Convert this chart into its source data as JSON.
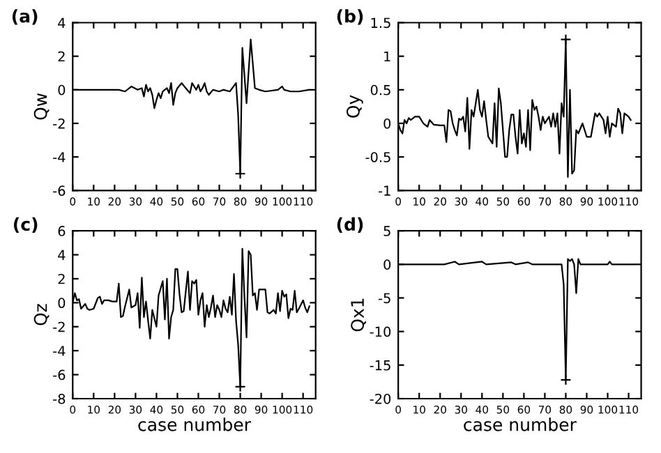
{
  "chart_data": [
    {
      "type": "line",
      "title": "(a)",
      "ylabel": "Qw",
      "xlim": [
        0,
        116
      ],
      "xticks": [
        0,
        10,
        20,
        30,
        40,
        50,
        60,
        70,
        80,
        90,
        100,
        110
      ],
      "ylim": [
        -6,
        4
      ],
      "yticks": [
        -6,
        -4,
        -2,
        0,
        2,
        4
      ],
      "grid": false,
      "series": [
        {
          "color": "#000000",
          "x": [
            0,
            22,
            25,
            28,
            31,
            33,
            34,
            35,
            36,
            37,
            38,
            39,
            40,
            41,
            42,
            43,
            45,
            46,
            47,
            48,
            49,
            50,
            52,
            54,
            56,
            57,
            58,
            59,
            60,
            61,
            62,
            63,
            64,
            65,
            67,
            70,
            72,
            75,
            78,
            79,
            80,
            81,
            83,
            85,
            87,
            89,
            92,
            98,
            100,
            101,
            104,
            108,
            113
          ],
          "values": [
            0,
            0,
            -0.1,
            0.2,
            0,
            0.1,
            -0.4,
            0.3,
            -0.1,
            0.1,
            -0.3,
            -1.1,
            -0.6,
            -0.2,
            -0.5,
            -0.1,
            0.1,
            -0.2,
            0.4,
            -0.9,
            -0.2,
            0.1,
            0.4,
            0.1,
            -0.2,
            0.4,
            0.2,
            0,
            0.3,
            -0.1,
            0.1,
            0.4,
            -0.1,
            -0.3,
            0,
            -0.1,
            0,
            -0.1,
            0.4,
            -1.5,
            -5,
            2.5,
            -0.8,
            3,
            0.1,
            0,
            -0.1,
            0,
            0.2,
            0,
            -0.1,
            -0.1,
            0
          ]
        },
        {
          "type": "scatter",
          "color": "#000000",
          "marker": "cross",
          "x": [
            80
          ],
          "values": [
            -5
          ]
        }
      ]
    },
    {
      "type": "line",
      "title": "(b)",
      "ylabel": "Qy",
      "xlim": [
        0,
        116
      ],
      "xticks": [
        0,
        10,
        20,
        30,
        40,
        50,
        60,
        70,
        80,
        90,
        100,
        110
      ],
      "ylim": [
        -1,
        1.5
      ],
      "yticks": [
        -1,
        -0.5,
        0,
        0.5,
        1,
        1.5
      ],
      "grid": false,
      "series": [
        {
          "color": "#000000",
          "x": [
            0,
            1,
            2,
            3,
            4,
            5,
            6,
            8,
            10,
            12,
            14,
            15,
            17,
            20,
            22,
            23,
            24,
            25,
            26,
            27,
            28,
            29,
            30,
            31,
            32,
            33,
            34,
            35,
            36,
            37,
            38,
            39,
            40,
            41,
            42,
            43,
            44,
            45,
            46,
            47,
            48,
            49,
            50,
            51,
            52,
            53,
            54,
            55,
            56,
            57,
            58,
            59,
            60,
            61,
            62,
            63,
            64,
            65,
            66,
            67,
            68,
            69,
            70,
            72,
            73,
            74,
            75,
            76,
            77,
            78,
            79,
            80,
            81,
            82,
            83,
            84,
            85,
            86,
            88,
            90,
            91,
            92,
            94,
            95,
            96,
            98,
            99,
            100,
            101,
            102,
            104,
            105,
            106,
            107,
            108,
            110,
            111
          ],
          "values": [
            0,
            -0.1,
            -0.15,
            0.05,
            0,
            0.08,
            0.05,
            0.1,
            0.1,
            0,
            -0.05,
            0.05,
            -0.02,
            -0.03,
            -0.03,
            -0.28,
            0.2,
            0.18,
            0,
            -0.1,
            -0.18,
            0.07,
            0.05,
            0.1,
            -0.12,
            0.38,
            -0.38,
            0.2,
            0.1,
            0.3,
            0.5,
            0.2,
            0.1,
            0.33,
            0.05,
            -0.2,
            -0.25,
            -0.3,
            0.3,
            -0.35,
            0.52,
            0.3,
            -0.1,
            -0.5,
            -0.5,
            -0.1,
            0.13,
            0.13,
            -0.2,
            -0.45,
            0.2,
            -0.3,
            -0.15,
            -0.35,
            0.2,
            -0.4,
            0.35,
            0.2,
            0.25,
            0.1,
            -0.1,
            0.1,
            0,
            0.1,
            -0.05,
            0.15,
            -0.05,
            0.15,
            -0.45,
            0.3,
            0.1,
            1.25,
            -0.8,
            0.5,
            -0.75,
            -0.7,
            -0.1,
            -0.15,
            0,
            -0.2,
            -0.2,
            -0.2,
            0.15,
            0.1,
            0.15,
            0.05,
            -0.15,
            0.1,
            -0.2,
            0,
            -0.05,
            0.22,
            0.15,
            -0.15,
            0.15,
            0.1,
            0.05
          ]
        },
        {
          "type": "scatter",
          "color": "#000000",
          "marker": "cross",
          "x": [
            80
          ],
          "values": [
            1.25
          ]
        }
      ]
    },
    {
      "type": "line",
      "title": "(c)",
      "ylabel": "Qz",
      "xlabel": "case number",
      "xlim": [
        0,
        116
      ],
      "xticks": [
        0,
        10,
        20,
        30,
        40,
        50,
        60,
        70,
        80,
        90,
        100,
        110
      ],
      "ylim": [
        -8,
        6
      ],
      "yticks": [
        -8,
        -6,
        -4,
        -2,
        0,
        2,
        4,
        6
      ],
      "grid": false,
      "series": [
        {
          "color": "#000000",
          "x": [
            0,
            1,
            2,
            3,
            4,
            5,
            6,
            7,
            8,
            10,
            12,
            13,
            14,
            15,
            17,
            19,
            21,
            22,
            23,
            24,
            25,
            27,
            28,
            30,
            31,
            32,
            33,
            34,
            35,
            36,
            37,
            38,
            40,
            41,
            42,
            43,
            44,
            45,
            46,
            47,
            48,
            49,
            50,
            51,
            52,
            53,
            55,
            56,
            57,
            58,
            59,
            60,
            61,
            62,
            63,
            64,
            65,
            66,
            67,
            68,
            69,
            70,
            71,
            72,
            73,
            74,
            75,
            76,
            77,
            78,
            79,
            80,
            81,
            82,
            83,
            84,
            85,
            86,
            87,
            88,
            89,
            92,
            93,
            94,
            96,
            97,
            98,
            99,
            100,
            101,
            102,
            103,
            104,
            105,
            106,
            107,
            108,
            110,
            111,
            112,
            113
          ],
          "values": [
            0,
            0.8,
            0.2,
            0.3,
            -0.5,
            -0.3,
            -0.1,
            -0.5,
            -0.6,
            -0.5,
            0.4,
            0.5,
            -0.1,
            0.2,
            0.2,
            0.1,
            0.1,
            1.6,
            -1.2,
            -1.1,
            -0.3,
            1.1,
            -0.4,
            -0.2,
            0.8,
            -2.1,
            2.1,
            -1.2,
            0.1,
            -1.5,
            -3,
            -0.6,
            -2,
            0.6,
            1.2,
            1.8,
            -1.4,
            2,
            -3,
            -1.2,
            -0.6,
            2.8,
            2.8,
            0.7,
            -0.8,
            -0.7,
            2.6,
            -0.6,
            1.8,
            1.6,
            1.9,
            -1,
            0.2,
            0.8,
            -2,
            -0.2,
            -1.2,
            -0.4,
            0.6,
            -1.2,
            -0.2,
            -0.6,
            -1.2,
            0.2,
            -0.5,
            -0.8,
            0.5,
            -1,
            2.4,
            -1.5,
            -3.5,
            -7,
            4.5,
            0.5,
            -2.9,
            4.3,
            4,
            0.6,
            0.8,
            -0.6,
            1.1,
            1.1,
            -0.8,
            -0.9,
            -0.6,
            -0.9,
            0.8,
            -0.7,
            1,
            0.5,
            0.7,
            -1.3,
            -0.5,
            -0.6,
            1,
            -0.8,
            -0.5,
            0.2,
            -0.4,
            -0.8,
            -0.3
          ]
        },
        {
          "type": "scatter",
          "color": "#000000",
          "marker": "cross",
          "x": [
            80
          ],
          "values": [
            -7
          ]
        }
      ]
    },
    {
      "type": "line",
      "title": "(d)",
      "ylabel": "Qx1",
      "xlabel": "case number",
      "xlim": [
        0,
        116
      ],
      "xticks": [
        0,
        10,
        20,
        30,
        40,
        50,
        60,
        70,
        80,
        90,
        100,
        110
      ],
      "ylim": [
        -20,
        5
      ],
      "yticks": [
        -20,
        -15,
        -10,
        -5,
        0,
        5
      ],
      "grid": false,
      "series": [
        {
          "color": "#000000",
          "x": [
            0,
            22,
            27,
            29,
            40,
            42,
            54,
            56,
            62,
            64,
            78,
            79,
            80,
            81,
            82,
            83,
            84,
            85,
            86,
            87,
            100,
            101,
            102,
            113
          ],
          "values": [
            0,
            0,
            0.4,
            0,
            0.4,
            0,
            0.3,
            0,
            0.3,
            0,
            0,
            -3,
            -17.2,
            0.8,
            0.5,
            0.8,
            0,
            -4.3,
            0.8,
            0,
            0,
            0.4,
            0,
            0
          ]
        },
        {
          "type": "scatter",
          "color": "#000000",
          "marker": "cross",
          "x": [
            80
          ],
          "values": [
            -17.2
          ]
        }
      ]
    }
  ]
}
